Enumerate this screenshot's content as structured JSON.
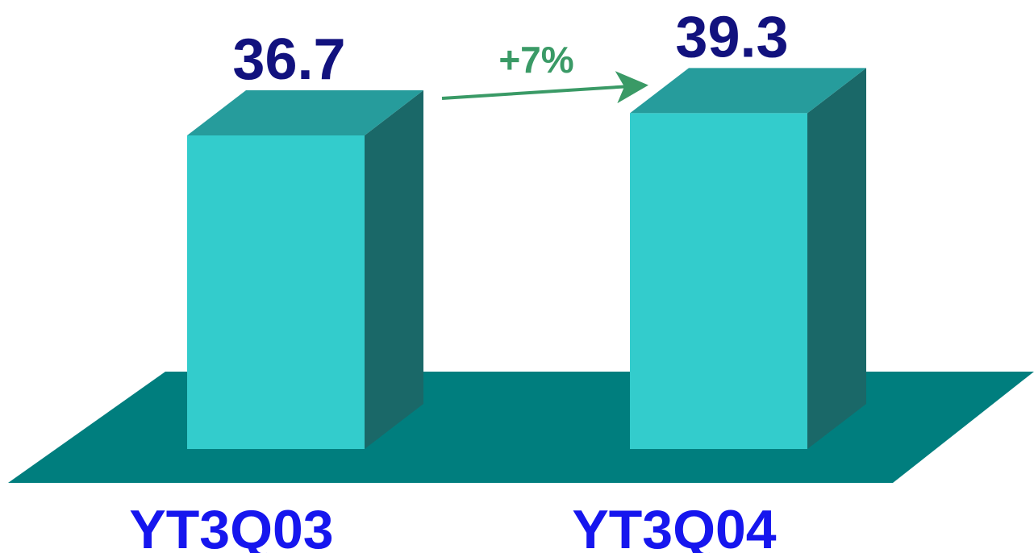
{
  "chart_data": {
    "type": "bar",
    "categories": [
      "YT3Q03",
      "YT3Q04"
    ],
    "values": [
      36.7,
      39.3
    ],
    "value_labels": [
      "36.7",
      "39.3"
    ],
    "annotation": "+7%",
    "title": "",
    "xlabel": "",
    "ylabel": "",
    "ylim": [
      0,
      39.3
    ],
    "grid": false,
    "legend": "none",
    "three_d": true
  },
  "colors": {
    "bar_front": "#33CCCC",
    "bar_top": "#269C9C",
    "bar_side": "#1A6868",
    "floor": "#007E7E",
    "value_text": "#12127E",
    "category_text": "#1616EE",
    "annotation": "#3A9A66"
  }
}
